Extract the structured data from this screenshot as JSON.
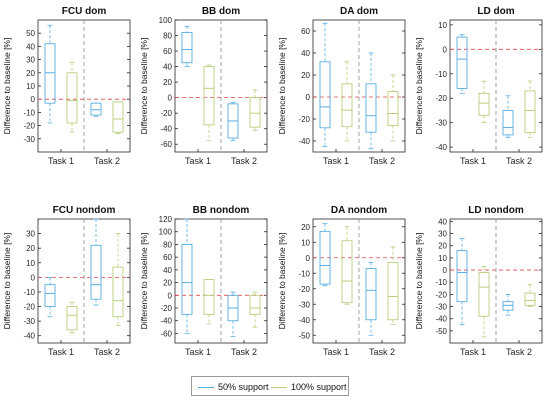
{
  "colors": {
    "support50": "#5aaee0",
    "support100": "#b8cf7e",
    "baseline": "#e8484a",
    "divider": "#8c8c8c"
  },
  "legend": {
    "items": [
      {
        "label": "50% support",
        "color": "#5aaee0"
      },
      {
        "label": "100% support",
        "color": "#b8cf7e"
      }
    ]
  },
  "chart_data": [
    {
      "type": "box",
      "title": "FCU dom",
      "ylabel": "Difference to baseline [%]",
      "ylim": [
        -40,
        60
      ],
      "yticks": [
        -30,
        -20,
        -10,
        0,
        10,
        20,
        30,
        40,
        50
      ],
      "categories": [
        "Task 1",
        "Task 2"
      ],
      "series": [
        {
          "name": "50% support",
          "boxes": [
            {
              "whisker_low": -18,
              "q1": -3,
              "median": 20,
              "q3": 42,
              "whisker_high": 56
            },
            {
              "whisker_low": -13,
              "q1": -12,
              "median": -8,
              "q3": -3,
              "whisker_high": -3
            }
          ]
        },
        {
          "name": "100% support",
          "boxes": [
            {
              "whisker_low": -25,
              "q1": -18,
              "median": -1,
              "q3": 20,
              "whisker_high": 28
            },
            {
              "whisker_low": -26,
              "q1": -25,
              "median": -15,
              "q3": -2,
              "whisker_high": -2
            }
          ]
        }
      ]
    },
    {
      "type": "box",
      "title": "BB dom",
      "ylabel": "Difference to baseline [%]",
      "ylim": [
        -70,
        100
      ],
      "yticks": [
        -60,
        -40,
        -20,
        0,
        20,
        40,
        60,
        80,
        100
      ],
      "categories": [
        "Task 1",
        "Task 2"
      ],
      "series": [
        {
          "name": "50% support",
          "boxes": [
            {
              "whisker_low": 40,
              "q1": 45,
              "median": 62,
              "q3": 84,
              "whisker_high": 92
            },
            {
              "whisker_low": -55,
              "q1": -52,
              "median": -30,
              "q3": -8,
              "whisker_high": -6
            }
          ]
        },
        {
          "name": "100% support",
          "boxes": [
            {
              "whisker_low": -55,
              "q1": -35,
              "median": 12,
              "q3": 40,
              "whisker_high": 42
            },
            {
              "whisker_low": -42,
              "q1": -38,
              "median": -20,
              "q3": 0,
              "whisker_high": 10
            }
          ]
        }
      ]
    },
    {
      "type": "box",
      "title": "DA dom",
      "ylabel": "Difference to baseline [%]",
      "ylim": [
        -50,
        70
      ],
      "yticks": [
        -40,
        -20,
        0,
        20,
        40,
        60
      ],
      "categories": [
        "Task 1",
        "Task 2"
      ],
      "series": [
        {
          "name": "50% support",
          "boxes": [
            {
              "whisker_low": -45,
              "q1": -28,
              "median": -9,
              "q3": 32,
              "whisker_high": 67
            },
            {
              "whisker_low": -47,
              "q1": -32,
              "median": -17,
              "q3": 12,
              "whisker_high": 40
            }
          ]
        },
        {
          "name": "100% support",
          "boxes": [
            {
              "whisker_low": -40,
              "q1": -27,
              "median": -12,
              "q3": 12,
              "whisker_high": 32
            },
            {
              "whisker_low": -40,
              "q1": -26,
              "median": -15,
              "q3": 5,
              "whisker_high": 20
            }
          ]
        }
      ]
    },
    {
      "type": "box",
      "title": "LD dom",
      "ylabel": "Difference to baseline [%]",
      "ylim": [
        -42,
        12
      ],
      "yticks": [
        -40,
        -30,
        -20,
        -10,
        0,
        10
      ],
      "categories": [
        "Task 1",
        "Task 2"
      ],
      "series": [
        {
          "name": "50% support",
          "boxes": [
            {
              "whisker_low": -18,
              "q1": -16,
              "median": -4,
              "q3": 5,
              "whisker_high": 6
            },
            {
              "whisker_low": -36,
              "q1": -35,
              "median": -32,
              "q3": -25,
              "whisker_high": -19
            }
          ]
        },
        {
          "name": "100% support",
          "boxes": [
            {
              "whisker_low": -30,
              "q1": -27,
              "median": -22,
              "q3": -18,
              "whisker_high": -13
            },
            {
              "whisker_low": -36,
              "q1": -34,
              "median": -25,
              "q3": -17,
              "whisker_high": -13
            }
          ]
        }
      ]
    },
    {
      "type": "box",
      "title": "FCU nondom",
      "ylabel": "Difference to baseline [%]",
      "ylim": [
        -45,
        40
      ],
      "yticks": [
        -40,
        -30,
        -20,
        -10,
        0,
        10,
        20,
        30
      ],
      "categories": [
        "Task 1",
        "Task 2"
      ],
      "series": [
        {
          "name": "50% support",
          "boxes": [
            {
              "whisker_low": -27,
              "q1": -20,
              "median": -11,
              "q3": -5,
              "whisker_high": 0
            },
            {
              "whisker_low": -19,
              "q1": -15,
              "median": -5,
              "q3": 22,
              "whisker_high": 40
            }
          ]
        },
        {
          "name": "100% support",
          "boxes": [
            {
              "whisker_low": -38,
              "q1": -36,
              "median": -26,
              "q3": -20,
              "whisker_high": -17
            },
            {
              "whisker_low": -33,
              "q1": -27,
              "median": -16,
              "q3": 7,
              "whisker_high": 30
            }
          ]
        }
      ]
    },
    {
      "type": "box",
      "title": "BB nondom",
      "ylabel": "Difference to baseline [%]",
      "ylim": [
        -75,
        120
      ],
      "yticks": [
        -60,
        -40,
        -20,
        0,
        20,
        40,
        60,
        80,
        100,
        120
      ],
      "categories": [
        "Task 1",
        "Task 2"
      ],
      "series": [
        {
          "name": "50% support",
          "boxes": [
            {
              "whisker_low": -60,
              "q1": -30,
              "median": 20,
              "q3": 80,
              "whisker_high": 120
            },
            {
              "whisker_low": -65,
              "q1": -40,
              "median": -20,
              "q3": 0,
              "whisker_high": 5
            }
          ]
        },
        {
          "name": "100% support",
          "boxes": [
            {
              "whisker_low": -45,
              "q1": -30,
              "median": 0,
              "q3": 25,
              "whisker_high": 25
            },
            {
              "whisker_low": -50,
              "q1": -30,
              "median": -20,
              "q3": 0,
              "whisker_high": 5
            }
          ]
        }
      ]
    },
    {
      "type": "box",
      "title": "DA nondom",
      "ylabel": "Difference to baseline [%]",
      "ylim": [
        -55,
        25
      ],
      "yticks": [
        -50,
        -40,
        -30,
        -20,
        -10,
        0,
        10,
        20
      ],
      "categories": [
        "Task 1",
        "Task 2"
      ],
      "series": [
        {
          "name": "50% support",
          "boxes": [
            {
              "whisker_low": -18,
              "q1": -17,
              "median": -5,
              "q3": 17,
              "whisker_high": 22
            },
            {
              "whisker_low": -50,
              "q1": -40,
              "median": -21,
              "q3": -7,
              "whisker_high": -3
            }
          ]
        },
        {
          "name": "100% support",
          "boxes": [
            {
              "whisker_low": -30,
              "q1": -29,
              "median": -15,
              "q3": 11,
              "whisker_high": 20
            },
            {
              "whisker_low": -43,
              "q1": -40,
              "median": -25,
              "q3": -3,
              "whisker_high": 7
            }
          ]
        }
      ]
    },
    {
      "type": "box",
      "title": "LD nondom",
      "ylabel": "Difference to baseline [%]",
      "ylim": [
        -60,
        42
      ],
      "yticks": [
        -50,
        -40,
        -30,
        -20,
        -10,
        0,
        10,
        20,
        30,
        40
      ],
      "categories": [
        "Task 1",
        "Task 2"
      ],
      "series": [
        {
          "name": "50% support",
          "boxes": [
            {
              "whisker_low": -45,
              "q1": -26,
              "median": -2,
              "q3": 16,
              "whisker_high": 26
            },
            {
              "whisker_low": -37,
              "q1": -33,
              "median": -29,
              "q3": -26,
              "whisker_high": -20
            }
          ]
        },
        {
          "name": "100% support",
          "boxes": [
            {
              "whisker_low": -55,
              "q1": -38,
              "median": -14,
              "q3": -2,
              "whisker_high": 3
            },
            {
              "whisker_low": -30,
              "q1": -29,
              "median": -25,
              "q3": -19,
              "whisker_high": -12
            }
          ]
        }
      ]
    }
  ]
}
